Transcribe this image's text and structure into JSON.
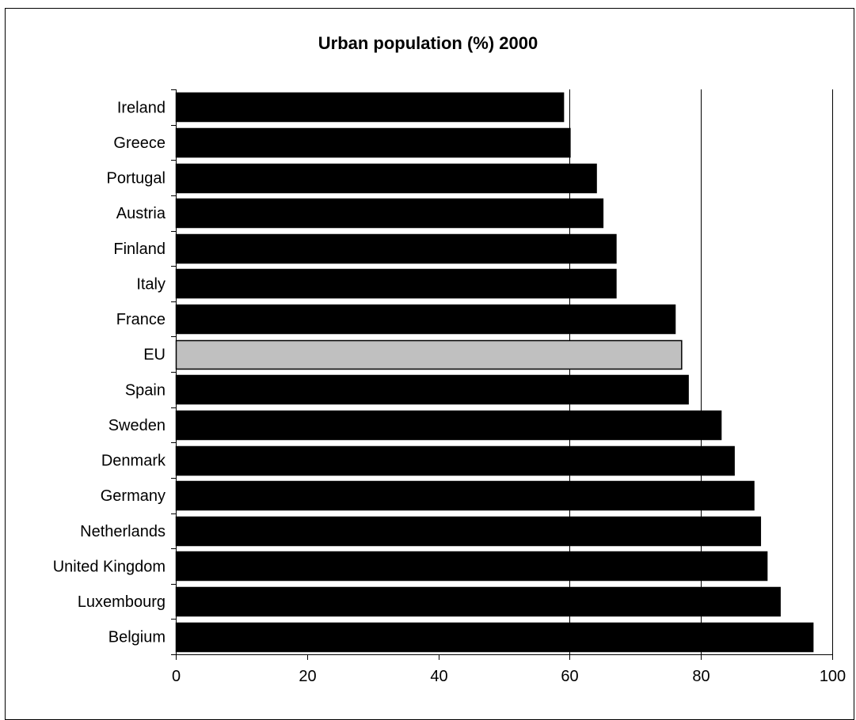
{
  "chart_data": {
    "type": "bar",
    "orientation": "horizontal",
    "title": "Urban population (%) 2000",
    "xlabel": "",
    "ylabel": "",
    "categories": [
      "Ireland",
      "Greece",
      "Portugal",
      "Austria",
      "Finland",
      "Italy",
      "France",
      "EU",
      "Spain",
      "Sweden",
      "Denmark",
      "Germany",
      "Netherlands",
      "United Kingdom",
      "Luxembourg",
      "Belgium"
    ],
    "values": [
      59,
      60,
      64,
      65,
      67,
      67,
      76,
      77,
      78,
      83,
      85,
      88,
      89,
      90,
      92,
      97
    ],
    "xlim": [
      0,
      100
    ],
    "xticks": [
      0,
      20,
      40,
      60,
      80,
      100
    ],
    "grid": "vertical at 60, 80, 100",
    "legend": "none",
    "colors": {
      "bar": "#000000",
      "highlight_bar": "#c0c0c0",
      "highlight_category": "EU"
    }
  }
}
